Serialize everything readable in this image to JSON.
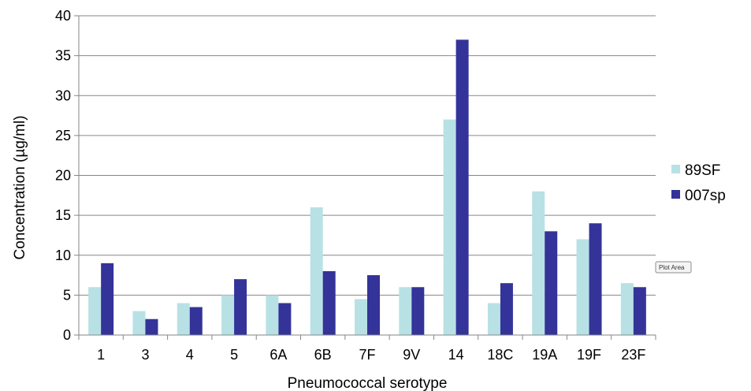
{
  "chart_data": {
    "type": "bar",
    "xlabel": "Pneumococcal serotype",
    "ylabel": "Concentration  (µg/ml)",
    "ylim": [
      0,
      40
    ],
    "yticks": [
      0,
      5,
      10,
      15,
      20,
      25,
      30,
      35,
      40
    ],
    "grid": true,
    "legend_position": "right",
    "categories": [
      "1",
      "3",
      "4",
      "5",
      "6A",
      "6B",
      "7F",
      "9V",
      "14",
      "18C",
      "19A",
      "19F",
      "23F"
    ],
    "series": [
      {
        "name": "89SF",
        "color": "#b7e1e4",
        "values": [
          6,
          3,
          4,
          5,
          5,
          16,
          4.5,
          6,
          27,
          4,
          18,
          12,
          6.5
        ]
      },
      {
        "name": "007sp",
        "color": "#333399",
        "values": [
          9,
          2,
          3.5,
          7,
          4,
          8,
          7.5,
          6,
          37,
          6.5,
          13,
          14,
          6
        ]
      }
    ]
  },
  "tooltip": {
    "label": "Plot Area"
  }
}
